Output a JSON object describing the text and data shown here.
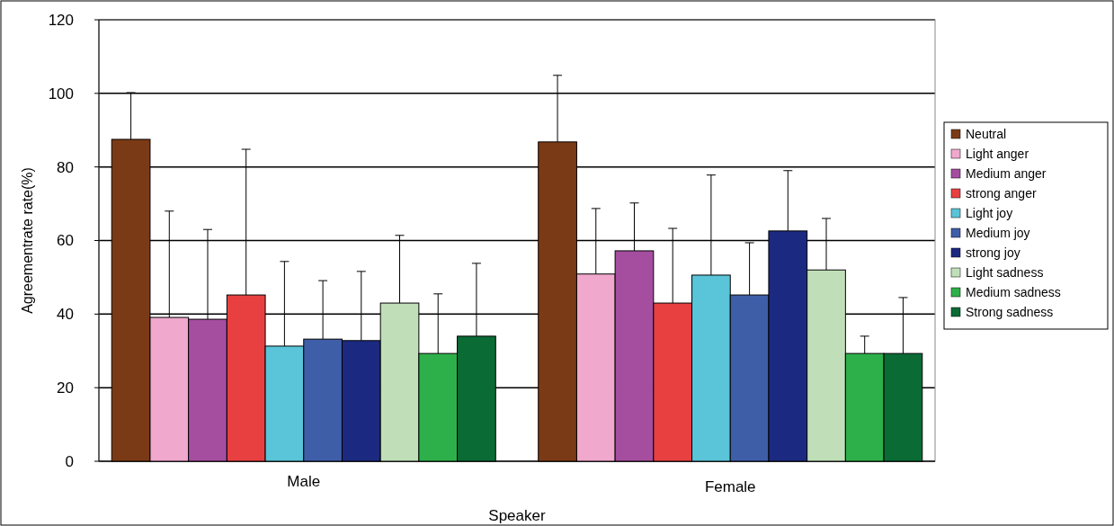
{
  "chart_data": {
    "type": "bar",
    "xlabel": "Speaker",
    "ylabel": "Agreementrate rate(%)",
    "categories": [
      "Male",
      "Female"
    ],
    "ylim": [
      0,
      120
    ],
    "yticks": [
      0,
      20,
      40,
      60,
      80,
      100,
      120
    ],
    "grid": "y",
    "legend": "right",
    "series": [
      {
        "name": "Neutral",
        "color": "#7b3a16",
        "values": [
          87.5,
          86.8
        ],
        "errors": [
          [
            87.5,
            100.2
          ],
          [
            86.8,
            104.9
          ]
        ]
      },
      {
        "name": "Light anger",
        "color": "#f0a8cc",
        "values": [
          39.1,
          50.9
        ],
        "errors": [
          [
            39.1,
            68
          ],
          [
            50.9,
            68.7
          ]
        ]
      },
      {
        "name": "Medium anger",
        "color": "#a54ea0",
        "values": [
          38.6,
          57.2
        ],
        "errors": [
          [
            38.6,
            63
          ],
          [
            57.2,
            70.2
          ]
        ]
      },
      {
        "name": "strong anger",
        "color": "#e84040",
        "values": [
          45.2,
          43
        ],
        "errors": [
          [
            45.2,
            84.8
          ],
          [
            43,
            63.3
          ]
        ]
      },
      {
        "name": "Light joy",
        "color": "#5ac4d8",
        "values": [
          31.3,
          50.6
        ],
        "errors": [
          [
            31.3,
            54.3
          ],
          [
            50.6,
            77.8
          ]
        ]
      },
      {
        "name": "Medium joy",
        "color": "#3f5ea8",
        "values": [
          33.2,
          45.2
        ],
        "errors": [
          [
            33.2,
            49.1
          ],
          [
            45.2,
            59.4
          ]
        ]
      },
      {
        "name": "strong joy",
        "color": "#1b2a80",
        "values": [
          32.8,
          62.6
        ],
        "errors": [
          [
            32.8,
            51.6
          ],
          [
            62.6,
            79
          ]
        ]
      },
      {
        "name": "Light sadness",
        "color": "#c0dfb8",
        "values": [
          43,
          52
        ],
        "errors": [
          [
            43,
            61.4
          ],
          [
            52,
            66
          ]
        ]
      },
      {
        "name": "Medium sadness",
        "color": "#2db04a",
        "values": [
          29.3,
          29.3
        ],
        "errors": [
          [
            29.3,
            45.5
          ],
          [
            29.3,
            34
          ]
        ]
      },
      {
        "name": "Strong sadness",
        "color": "#0a6b35",
        "values": [
          34,
          29.3
        ],
        "errors": [
          [
            34,
            53.8
          ],
          [
            29.3,
            44.5
          ]
        ]
      }
    ]
  }
}
